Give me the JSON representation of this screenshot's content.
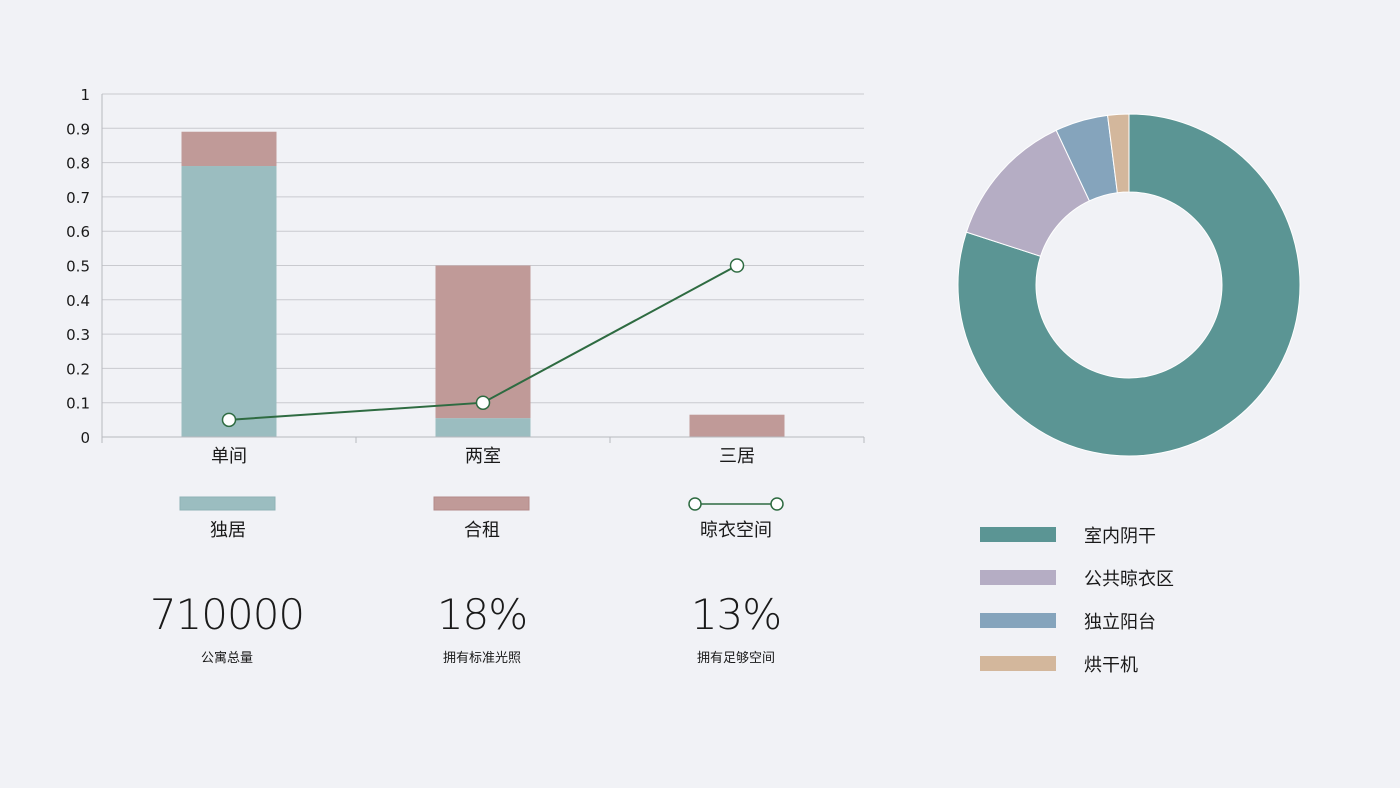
{
  "chart_data": [
    {
      "type": "bar",
      "stacked": true,
      "categories": [
        "单间",
        "两室",
        "三居"
      ],
      "ylim": [
        0,
        1
      ],
      "yticks": [
        "0",
        "0.1",
        "0.2",
        "0.3",
        "0.4",
        "0.5",
        "0.6",
        "0.7",
        "0.8",
        "0.9",
        "1"
      ],
      "grid": true,
      "legend_placement": "bottom",
      "series": [
        {
          "name": "独居",
          "type": "bar",
          "values": [
            0.79,
            0.055,
            0
          ],
          "color": "#9bbdc0"
        },
        {
          "name": "合租",
          "type": "bar",
          "values": [
            0.1,
            0.445,
            0.065
          ],
          "color": "#c09a98"
        },
        {
          "name": "晾衣空间",
          "type": "line",
          "values": [
            0.05,
            0.1,
            0.5
          ],
          "color": "#2e6b41"
        }
      ]
    },
    {
      "type": "pie",
      "donut": true,
      "legend_placement": "right-bottom",
      "slices": [
        {
          "label": "室内阴干",
          "value": 0.8,
          "color": "#5b9594"
        },
        {
          "label": "公共晾衣区",
          "value": 0.13,
          "color": "#b5adc4"
        },
        {
          "label": "独立阳台",
          "value": 0.05,
          "color": "#85a4bc"
        },
        {
          "label": "烘干机",
          "value": 0.02,
          "color": "#d3b79c"
        }
      ]
    }
  ],
  "stats": [
    {
      "value": "710000",
      "label": "公寓总量"
    },
    {
      "value": "18%",
      "label": "拥有标准光照"
    },
    {
      "value": "13%",
      "label": "拥有足够空间"
    }
  ]
}
